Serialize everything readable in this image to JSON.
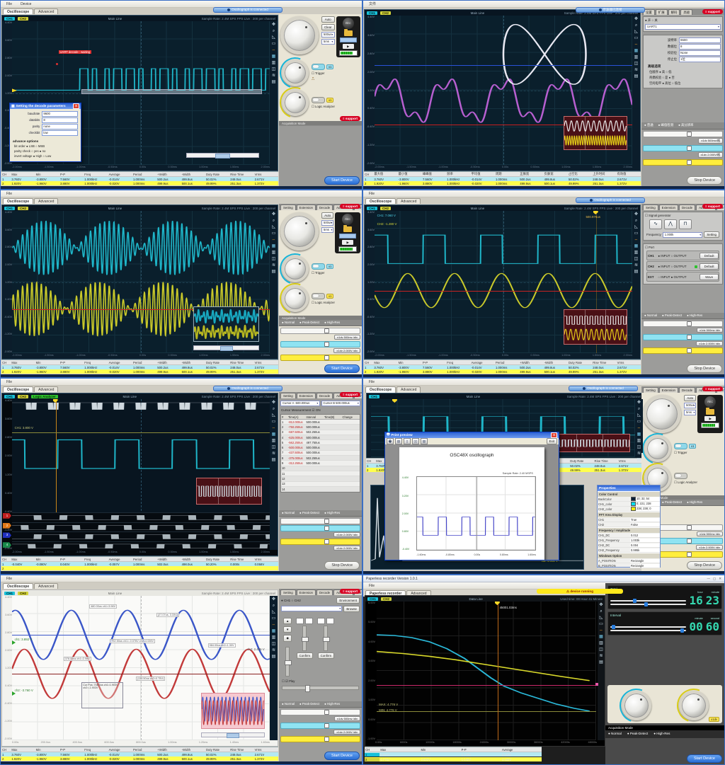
{
  "common": {
    "support": "support",
    "start": "Start Device",
    "stop": "Stop Device",
    "ch1": "CH1",
    "ch2": "CH2",
    "main_line": "Main Line",
    "sample_rate": "Sample Rate: 2.4M SPS   FPS Live : 200 per channel",
    "acq_label": "Acquisition Mode",
    "acq_opts": [
      "● Normal",
      "● Peak-Detect",
      "● High-Res"
    ],
    "menus": [
      "File"
    ],
    "app_tabs": [
      "Oscilloscope",
      "Advanced"
    ],
    "status": "Oscillograph is connected",
    "set_tabs": [
      "Setting",
      "Extension",
      "Decode",
      "Advanced",
      "Configure"
    ],
    "kp": {
      "auto": "Auto",
      "clear": "Clear",
      "rec": "REC",
      "t1": "500us",
      "t2": "5ms",
      "x1": "x1",
      "trigger": "Trigger",
      "logic": "Logic Analyzer"
    },
    "bar_btn1": "x1dv 500mv /div",
    "bar_btn2": "x1dv 2.000V /div",
    "headers": [
      "CH",
      "Max",
      "Min",
      "P-P",
      "Freq",
      "Average",
      "Period",
      "+Width",
      "-Width",
      "Duty Rate",
      "Rise Time",
      "Vrms"
    ],
    "rows": [
      [
        "1",
        "3.760V",
        "-3.800V",
        "7.560V",
        "1.000kHz",
        "-0.014V",
        "1.000ms",
        "500.2us",
        "499.8us",
        "50.02%",
        "248.0us",
        "2.671V"
      ],
      [
        "2",
        "1.920V",
        "-1.960V",
        "3.880V",
        "1.000kHz",
        "-0.020V",
        "1.000ms",
        "499.9us",
        "500.1us",
        "49.99%",
        "251.3us",
        "1.372V"
      ]
    ],
    "yticks": [
      "4.40V",
      "3.60V",
      "2.80V",
      "2.00V",
      "1.20V",
      "0.40V",
      "-0.40V",
      "-1.20V",
      "-2.00V"
    ],
    "xticks": [
      "-2.00ms",
      "-1.50ms",
      "-1.00ms",
      "-0.50ms",
      "0.00s",
      "0.50ms",
      "1.00ms",
      "1.50ms",
      "2.00ms"
    ],
    "icons": [
      "✥",
      "⌕",
      "◺",
      "▭",
      "⇔",
      "▦",
      "▥",
      "◫",
      "≋",
      "▤"
    ]
  },
  "p1": {
    "menus": [
      "File",
      "Device"
    ],
    "decode_label": "UART decode : waiting",
    "dialog": {
      "title": "Setting the decode parameters",
      "close": "✕",
      "fields": [
        [
          "baudrate",
          "9600"
        ],
        [
          "databits",
          "8"
        ],
        [
          "parity",
          "none"
        ],
        [
          "checkbit",
          "low"
        ]
      ],
      "adv": "advance options",
      "opts": [
        "bit order          ● LSB     ○ MSB",
        "parity check     ○ yes     ● no",
        "invert voltage  ● High    ○ Low"
      ]
    }
  },
  "p2": {
    "menus": [
      "文件"
    ],
    "status": "示波器已连接",
    "tabs": [
      "设置",
      "扩展",
      "解码",
      "高级"
    ],
    "radio_row": "● 开          ○ 关",
    "proto": "UART1",
    "fields": [
      [
        "波特率",
        "9600"
      ],
      [
        "数据位",
        "8"
      ],
      [
        "校验位",
        "None"
      ],
      [
        "停止位",
        "1位"
      ]
    ],
    "adv": "高级选项",
    "opts": [
      "位顺序      ● 高    ○ 低",
      "奇偶校验   ○ 是    ● 否",
      "空闲电平   ● 高位  ○ 低位"
    ],
    "acq_opts": [
      "● 普通",
      "● 峰值检测",
      "● 高分辨率"
    ],
    "bar_btn1": "x1dv 500mv/格",
    "bar_btn2": "x1dv 2.000V/格",
    "headers": [
      "CH",
      "最大值",
      "最小值",
      "峰峰值",
      "频率",
      "平均值",
      "周期",
      "正脉宽",
      "负脉宽",
      "占空比",
      "上升时间",
      "有效值"
    ]
  },
  "p4": {
    "ch1_val": "CH1:  7.060 V",
    "ch2_val": "CH2: -1.280 V",
    "trig_label": "500.975us",
    "sg_title": "Signal generator",
    "freq_label": "Frequency",
    "freq_val": "1.000k",
    "setting": "Setting",
    "port_title": "Port",
    "sg_rows": [
      [
        "CH1",
        "● INPUT   ○ OUTPUT",
        "Default"
      ],
      [
        "CH2",
        "● INPUT   ○ OUTPUT",
        "Default"
      ],
      [
        "EXT",
        "○ INPUT   ● OUTPUT",
        "Wave"
      ]
    ]
  },
  "p5": {
    "logic": "Logic Analyzer",
    "level_label": "CH1: 3.800 V",
    "selA": "Cursor A   -500.000us",
    "selB": "Cursor B    500.000us",
    "cm_title": "Cursor Measurement",
    "cm_on": "☑ ON",
    "cm_headers": [
      "#",
      "Time(A)",
      "Interval",
      "Time(B)",
      "Change"
    ],
    "cm_rows": [
      [
        "1",
        "-812.000us",
        "500.000us",
        "",
        ""
      ],
      [
        "2",
        "-750.250us",
        "500.000us",
        "",
        ""
      ],
      [
        "3",
        "-687.500us",
        "502.250us",
        "",
        ""
      ],
      [
        "4",
        "-625.000us",
        "500.000us",
        "",
        ""
      ],
      [
        "5",
        "-562.250us",
        "497.750us",
        "",
        ""
      ],
      [
        "6",
        "-500.000us",
        "500.000us",
        "",
        ""
      ],
      [
        "7",
        "-437.500us",
        "500.000us",
        "",
        ""
      ],
      [
        "8",
        "-375.000us",
        "502.250us",
        "",
        ""
      ],
      [
        "9",
        "-312.250us",
        "500.000us",
        "",
        ""
      ],
      [
        "10",
        "",
        "",
        "",
        ""
      ],
      [
        "11",
        "",
        "",
        "",
        ""
      ],
      [
        "12",
        "",
        "",
        "",
        ""
      ],
      [
        "13",
        "",
        "",
        "",
        ""
      ],
      [
        "14",
        "",
        "",
        "",
        ""
      ]
    ],
    "rows": [
      [
        "1",
        "-0.040V",
        "-0.080V",
        "0.040V",
        "1.000kHz",
        "-0.057V",
        "1.000ms",
        "502.0us",
        "498.0us",
        "50.20%",
        "0.000s",
        "0.058V"
      ],
      [
        "2",
        "",
        "",
        "",
        "",
        "",
        "",
        "",
        "",
        "",
        "",
        ""
      ]
    ]
  },
  "p6": {
    "pp_title": "Print preview",
    "pp_exit": "Exit",
    "page_title": "OSC48X oscillograph",
    "page_note": "Sample Rate: 2.40 MSPS",
    "pv_yticks": [
      "4.40V",
      "3.20V",
      "2.00V",
      "0.80V",
      "-0.40V"
    ],
    "pv_xticks": [
      "-1.60ms",
      "-0.80ms",
      "0.00s",
      "0.80ms",
      "1.60ms"
    ],
    "pg_title": "Properties",
    "sec1": "Color Control",
    "rows1": [
      [
        "BackColor",
        "10; 32; 54"
      ],
      [
        "CH1_color",
        "0; 221; 238"
      ],
      [
        "CH2_color",
        "238; 238; 0"
      ]
    ],
    "sec2": "FFT Area Display",
    "rows2": [
      [
        "CH1",
        "True"
      ],
      [
        "CH2",
        "False"
      ]
    ],
    "sec3": "Frequency / Amplitude",
    "rows3": [
      [
        "CH1_DC",
        "0.012"
      ],
      [
        "CH1_Frequency",
        "1.003k"
      ],
      [
        "CH2_DC",
        "0.004"
      ],
      [
        "CH2_Frequency",
        "0.995k"
      ]
    ],
    "sec4": "Windows Option",
    "rows4": [
      [
        "A_POSITION",
        "Rectangle"
      ],
      [
        "B_POSITION",
        "Rectangle"
      ]
    ],
    "fft_label": "val: 4.002 V"
  },
  "p7": {
    "callouts": [
      "480.00us  ch1=3.96V",
      "(27.07us, 3.33V)",
      "752.50us  ch1=-0.076V  ch2=4.026V",
      "984.00us  ch2=1.30V",
      "378.00us  ch1=2.96V",
      "(135.50us  ch2=0.75V)"
    ],
    "cursor_box": "Cur Pos: 708.0us  ch1=1.903V  ch2=-1.903V",
    "lbl1": "ch1: 3.892 V",
    "lbl2": "ch2: -3.760 V",
    "lbl3": "ch2: 2.485 V",
    "chsel": "● CH1      ○ CH2",
    "env": "Environment",
    "browse": "Browse",
    "confirm": "Confirm",
    "play": "☑ Play",
    "xticks": [
      "0.00s",
      "200.0us",
      "400.0us",
      "600.0us",
      "800.0us",
      "1.00ms",
      "1.20ms",
      "1.40ms",
      "1.60ms"
    ]
  },
  "p8": {
    "title": "Paperless recorder  Version 1.0.1",
    "winbtns": [
      "—",
      "▢",
      "✕"
    ],
    "menus": [
      "File"
    ],
    "tabs": [
      "Paperless recorder",
      "Advanced"
    ],
    "banner": "device  running",
    "data_line": "Data Line",
    "used": "Used time: 00 Hour 41 Minute",
    "cursor_label": "45001.03ms",
    "max_lbl": "MAX: 4.776 V",
    "min_lbl": "MIN: 4.776 V",
    "total_t": "Total",
    "total_u1": "hour",
    "total_u2": "minute",
    "total_v1": "16",
    "total_v2": "23",
    "int_t": "Interval",
    "int_u1": "minute",
    "int_u2": "second",
    "int_v1": "00",
    "int_v2": "60",
    "x1dv": "x1dv",
    "headers": [
      "CH",
      "Max",
      "Min",
      "P-P",
      "Average"
    ],
    "rows": [
      [
        "1",
        "4.952V",
        "2.173V",
        "2.779V",
        "3.418V"
      ],
      [
        "2",
        "4.776V",
        "3.630V",
        "1.146V",
        "4.189V"
      ]
    ],
    "yticks": [
      "6.00V",
      "5.00V",
      "4.00V",
      "3.00V",
      "2.00V",
      "1.00V",
      "0.00V",
      "-1.00V"
    ],
    "xticks": [
      "0.00s",
      "6000s",
      "12000s",
      "18000s",
      "24000s",
      "30000s",
      "36000s",
      "42000s",
      "48000s"
    ]
  }
}
